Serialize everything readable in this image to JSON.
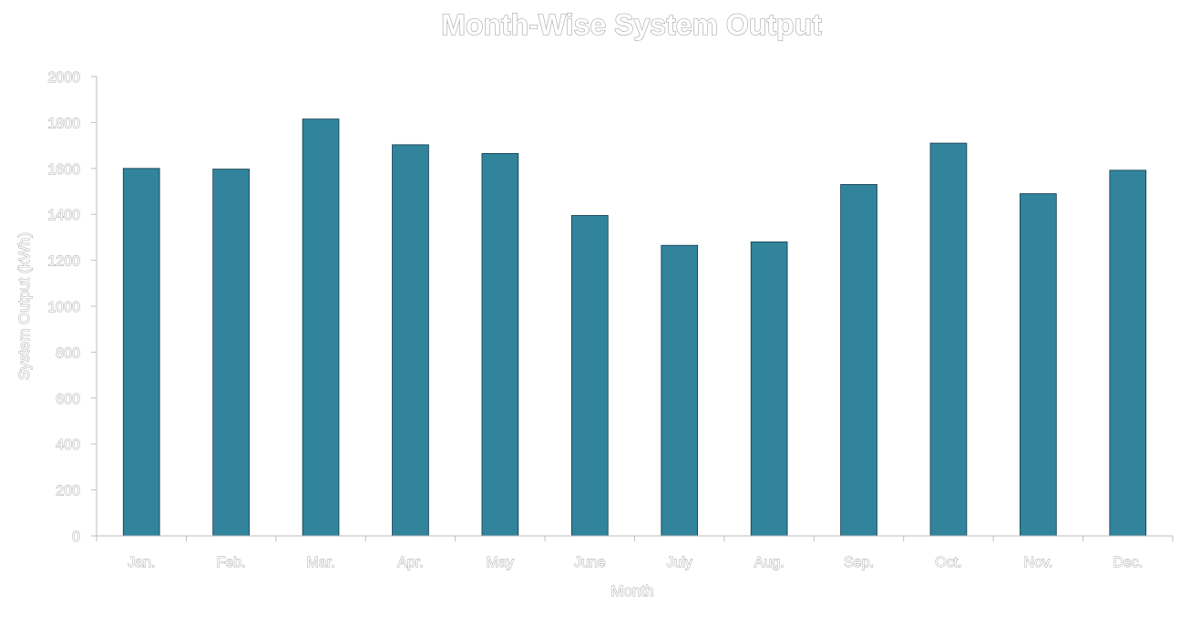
{
  "chart_data": {
    "type": "bar",
    "title": "Month-Wise System Output",
    "xlabel": "Month",
    "ylabel": "System Output (kWh)",
    "categories": [
      "Jan.",
      "Feb.",
      "Mar.",
      "Apr.",
      "May",
      "June",
      "July",
      "Aug.",
      "Sep.",
      "Oct.",
      "Nov.",
      "Dec."
    ],
    "values": [
      1600,
      1597,
      1815,
      1703,
      1665,
      1395,
      1265,
      1280,
      1530,
      1710,
      1490,
      1592
    ],
    "ylim": [
      0,
      2000
    ],
    "yticks": [
      0,
      200,
      400,
      600,
      800,
      1000,
      1200,
      1400,
      1600,
      1800,
      2000
    ],
    "grid": false,
    "legend": "none",
    "colors": {
      "bar": "#31849b"
    }
  }
}
